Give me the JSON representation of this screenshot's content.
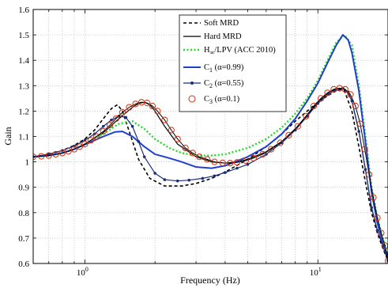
{
  "chart_data": {
    "type": "line",
    "xlabel": "Frequency (Hz)",
    "ylabel": "Gain",
    "xscale": "log",
    "xlim": [
      0.6,
      20
    ],
    "ylim": [
      0.6,
      1.6
    ],
    "grid": true,
    "legend_position": "top-center",
    "x_ticks": [
      {
        "value": 1,
        "label": "10",
        "sup": "0"
      },
      {
        "value": 10,
        "label": "10",
        "sup": "1"
      }
    ],
    "y_ticks": [
      0.6,
      0.7,
      0.8,
      0.9,
      1.0,
      1.1,
      1.2,
      1.3,
      1.4,
      1.5,
      1.6
    ],
    "y_tick_labels": [
      "0.6",
      "0.7",
      "0.8",
      "0.9",
      "1",
      "1.1",
      "1.2",
      "1.3",
      "1.4",
      "1.5",
      "1.6"
    ],
    "series": [
      {
        "key": "soft",
        "name": "Soft MRD",
        "color": "#000000",
        "style": "dashed",
        "x": [
          0.6,
          0.7,
          0.8,
          0.9,
          1.0,
          1.1,
          1.2,
          1.3,
          1.38,
          1.45,
          1.55,
          1.7,
          1.9,
          2.2,
          2.6,
          3.0,
          3.5,
          4.0,
          5.0,
          6.0,
          7.0,
          8.0,
          9.0,
          10.0,
          11.0,
          12.0,
          12.5,
          13.0,
          14.0,
          15.0,
          16.0,
          17.0,
          18.0,
          19.0,
          20.0
        ],
        "y": [
          1.02,
          1.03,
          1.045,
          1.065,
          1.09,
          1.125,
          1.17,
          1.21,
          1.225,
          1.2,
          1.12,
          1.01,
          0.935,
          0.905,
          0.905,
          0.915,
          0.935,
          0.96,
          1.01,
          1.06,
          1.11,
          1.16,
          1.2,
          1.235,
          1.26,
          1.28,
          1.285,
          1.28,
          1.2,
          1.06,
          0.92,
          0.8,
          0.72,
          0.66,
          0.61
        ]
      },
      {
        "key": "hard",
        "name": "Hard MRD",
        "color": "#000000",
        "style": "solid",
        "x": [
          0.6,
          0.7,
          0.8,
          0.9,
          1.0,
          1.2,
          1.4,
          1.6,
          1.7,
          1.8,
          1.9,
          2.0,
          2.2,
          2.5,
          3.0,
          3.5,
          4.0,
          4.5,
          5.0,
          6.0,
          7.0,
          8.0,
          9.0,
          10.0,
          11.0,
          12.0,
          12.8,
          13.5,
          14.0,
          15.0,
          16.0,
          17.0,
          18.0,
          19.0,
          20.0
        ],
        "y": [
          1.02,
          1.025,
          1.035,
          1.05,
          1.07,
          1.115,
          1.17,
          1.215,
          1.23,
          1.235,
          1.225,
          1.2,
          1.14,
          1.07,
          1.02,
          1.0,
          0.995,
          1.0,
          1.01,
          1.04,
          1.08,
          1.13,
          1.185,
          1.235,
          1.27,
          1.288,
          1.29,
          1.27,
          1.24,
          1.12,
          0.97,
          0.82,
          0.73,
          0.67,
          0.61
        ]
      },
      {
        "key": "hinf",
        "name": "H",
        "name_sub": "∞",
        "name_rest": "/LPV (ACC 2010)",
        "color": "#22dd22",
        "style": "dotted",
        "x": [
          0.6,
          0.7,
          0.8,
          0.9,
          1.0,
          1.2,
          1.4,
          1.6,
          1.8,
          2.0,
          2.3,
          2.6,
          3.0,
          3.5,
          4.0,
          5.0,
          6.0,
          7.0,
          8.0,
          9.0,
          10.0,
          11.0,
          12.0,
          13.0,
          14.0,
          15.0,
          16.0,
          17.0,
          18.0,
          19.0,
          20.0
        ],
        "y": [
          1.02,
          1.025,
          1.035,
          1.05,
          1.07,
          1.11,
          1.15,
          1.16,
          1.13,
          1.09,
          1.055,
          1.035,
          1.025,
          1.025,
          1.03,
          1.055,
          1.09,
          1.135,
          1.19,
          1.25,
          1.32,
          1.4,
          1.47,
          1.5,
          1.46,
          1.3,
          1.1,
          0.9,
          0.78,
          0.7,
          0.64
        ]
      },
      {
        "key": "c1",
        "name": "C",
        "name_sub": "1",
        "name_rest": " (α=0.99)",
        "color": "#1f3fd0",
        "style": "solid",
        "x": [
          0.6,
          0.7,
          0.8,
          0.9,
          1.0,
          1.2,
          1.35,
          1.45,
          1.6,
          1.8,
          2.0,
          2.3,
          2.6,
          3.0,
          3.5,
          4.0,
          5.0,
          6.0,
          7.0,
          8.0,
          9.0,
          10.0,
          11.0,
          12.0,
          12.8,
          13.5,
          14.0,
          15.0,
          16.0,
          17.0,
          18.0,
          19.0,
          20.0
        ],
        "y": [
          1.02,
          1.025,
          1.035,
          1.05,
          1.068,
          1.1,
          1.118,
          1.12,
          1.1,
          1.06,
          1.03,
          1.015,
          1.0,
          0.98,
          0.975,
          0.985,
          1.02,
          1.06,
          1.11,
          1.17,
          1.24,
          1.31,
          1.39,
          1.46,
          1.5,
          1.48,
          1.43,
          1.28,
          1.08,
          0.88,
          0.76,
          0.68,
          0.63
        ]
      },
      {
        "key": "c2",
        "name": "C",
        "name_sub": "2",
        "name_rest": " (α=0.55)",
        "color": "#1a2f7a",
        "style": "solid-dot",
        "x": [
          0.6,
          0.7,
          0.8,
          0.9,
          1.0,
          1.1,
          1.2,
          1.3,
          1.4,
          1.5,
          1.6,
          1.7,
          1.8,
          2.0,
          2.2,
          2.5,
          2.8,
          3.2,
          3.6,
          4.0,
          4.5,
          5.0,
          6.0,
          7.0,
          8.0,
          9.0,
          10.0,
          11.0,
          12.0,
          12.8,
          13.5,
          14.0,
          15.0,
          16.0,
          17.0,
          18.0,
          19.0,
          20.0
        ],
        "y": [
          1.02,
          1.03,
          1.045,
          1.062,
          1.085,
          1.11,
          1.14,
          1.165,
          1.18,
          1.175,
          1.14,
          1.08,
          1.02,
          0.955,
          0.93,
          0.925,
          0.928,
          0.935,
          0.945,
          0.958,
          0.975,
          0.99,
          1.03,
          1.075,
          1.125,
          1.18,
          1.23,
          1.265,
          1.285,
          1.29,
          1.275,
          1.24,
          1.12,
          0.97,
          0.82,
          0.73,
          0.67,
          0.61
        ]
      },
      {
        "key": "c3",
        "name": "C",
        "name_sub": "3",
        "name_rest": " (α=0.1)",
        "color": "#d03010",
        "style": "circles",
        "x": [
          0.6,
          0.65,
          0.7,
          0.75,
          0.8,
          0.85,
          0.9,
          0.95,
          1.0,
          1.06,
          1.12,
          1.2,
          1.28,
          1.36,
          1.45,
          1.55,
          1.65,
          1.75,
          1.85,
          1.95,
          2.05,
          2.2,
          2.35,
          2.5,
          2.7,
          2.9,
          3.1,
          3.35,
          3.6,
          3.9,
          4.2,
          4.5,
          4.9,
          5.3,
          5.8,
          6.3,
          6.9,
          7.5,
          8.2,
          8.9,
          9.6,
          10.3,
          11.0,
          11.7,
          12.4,
          13.1,
          13.8,
          14.5,
          15.2,
          15.9,
          16.6,
          17.3,
          18.0,
          18.7,
          19.4,
          20.0
        ],
        "y": [
          1.02,
          1.022,
          1.025,
          1.03,
          1.035,
          1.042,
          1.05,
          1.06,
          1.07,
          1.085,
          1.1,
          1.12,
          1.145,
          1.17,
          1.195,
          1.215,
          1.228,
          1.235,
          1.232,
          1.22,
          1.2,
          1.165,
          1.125,
          1.09,
          1.055,
          1.035,
          1.02,
          1.01,
          1.0,
          0.996,
          0.995,
          0.998,
          1.005,
          1.015,
          1.03,
          1.05,
          1.075,
          1.105,
          1.14,
          1.18,
          1.22,
          1.25,
          1.272,
          1.286,
          1.29,
          1.286,
          1.265,
          1.22,
          1.15,
          1.05,
          0.95,
          0.86,
          0.78,
          0.72,
          0.67,
          0.61
        ]
      }
    ]
  }
}
